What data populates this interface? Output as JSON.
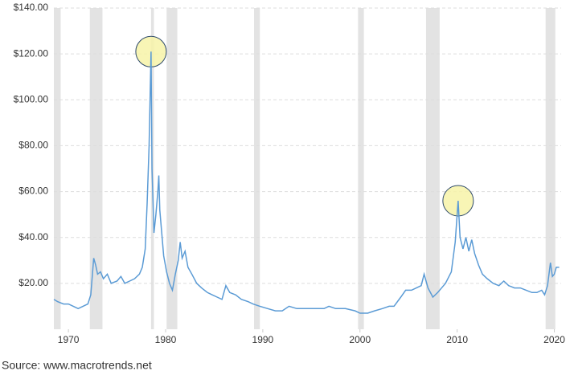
{
  "chart_data": {
    "type": "line",
    "source": "Source:  www.macrotrends.net",
    "xlim": [
      1968.5,
      2020.7
    ],
    "ylim": [
      0,
      140
    ],
    "xticks": [
      1970,
      1980,
      1990,
      2000,
      2010,
      2020
    ],
    "yticks": [
      {
        "value": 20,
        "label": "$20.00"
      },
      {
        "value": 40,
        "label": "$40.00"
      },
      {
        "value": 60,
        "label": "$60.00"
      },
      {
        "value": 80,
        "label": "$80.00"
      },
      {
        "value": 100,
        "label": "$100.00"
      },
      {
        "value": 120,
        "label": "$120.00"
      },
      {
        "value": 140,
        "label": "$140.00"
      }
    ],
    "grid": true,
    "recession_color": "#e3e3e3",
    "recessions": [
      [
        1968.5,
        1969.2
      ],
      [
        1972.2,
        1973.5
      ],
      [
        1978.5,
        1978.8
      ],
      [
        1980.1,
        1981.2
      ],
      [
        1989.1,
        1989.7
      ],
      [
        1999.8,
        2000.4
      ],
      [
        2006.8,
        2008.2
      ],
      [
        2019.1,
        2020.1
      ]
    ],
    "highlight_color": "#f7f3a8",
    "highlights": [
      {
        "x": 1978.5,
        "y": 121
      },
      {
        "x": 2010.1,
        "y": 56
      }
    ],
    "series": [
      {
        "color": "#5b9bd5",
        "x": [
          1968.5,
          1968.9,
          1969.5,
          1970,
          1970.5,
          1971,
          1971.5,
          1972,
          1972.3,
          1972.6,
          1972.8,
          1973.0,
          1973.3,
          1973.6,
          1974,
          1974.4,
          1975,
          1975.4,
          1975.8,
          1976.3,
          1976.8,
          1977.3,
          1977.6,
          1977.9,
          1978.1,
          1978.3,
          1978.5,
          1978.6,
          1978.8,
          1979.0,
          1979.2,
          1979.3,
          1979.4,
          1979.6,
          1979.8,
          1980.1,
          1980.4,
          1980.7,
          1981.0,
          1981.3,
          1981.5,
          1981.7,
          1982.0,
          1982.3,
          1982.7,
          1983.2,
          1983.7,
          1984.3,
          1984.8,
          1985.3,
          1985.8,
          1986.2,
          1986.6,
          1987.2,
          1987.8,
          1988.5,
          1989,
          1989.7,
          1990.5,
          1991.3,
          1992,
          1992.7,
          1993.5,
          1994.5,
          1995.5,
          1996.3,
          1996.8,
          1997.5,
          1998.5,
          1999.5,
          2000,
          2000.8,
          2001.5,
          2002.3,
          2003,
          2003.5,
          2004.2,
          2004.7,
          2005.3,
          2005.8,
          2006.3,
          2006.6,
          2007,
          2007.5,
          2008,
          2008.4,
          2008.8,
          2009.4,
          2009.8,
          2010.1,
          2010.3,
          2010.6,
          2010.9,
          2011.2,
          2011.5,
          2011.8,
          2012.2,
          2012.6,
          2013.1,
          2013.7,
          2014.3,
          2014.8,
          2015.3,
          2015.9,
          2016.5,
          2017.1,
          2017.7,
          2018.2,
          2018.7,
          2019.0,
          2019.3,
          2019.6,
          2019.8,
          2020.0,
          2020.2,
          2020.5
        ],
        "values": [
          13,
          12,
          11,
          11,
          10,
          9,
          10,
          11,
          15,
          31,
          28,
          24,
          25,
          22,
          24,
          20,
          21,
          23,
          20,
          21,
          22,
          24,
          27,
          35,
          55,
          80,
          121,
          70,
          42,
          50,
          60,
          67,
          52,
          42,
          32,
          25,
          20,
          17,
          24,
          30,
          38,
          31,
          34,
          27,
          24,
          20,
          18,
          16,
          15,
          14,
          13,
          19,
          16,
          15,
          13,
          12,
          11,
          10,
          9,
          8,
          8,
          10,
          9,
          9,
          9,
          9,
          10,
          9,
          9,
          8,
          7,
          7,
          8,
          9,
          10,
          10,
          14,
          17,
          17,
          18,
          19,
          24,
          18,
          14,
          16,
          18,
          20,
          25,
          38,
          56,
          40,
          35,
          40,
          34,
          39,
          33,
          28,
          24,
          22,
          20,
          19,
          21,
          19,
          18,
          18,
          17,
          16,
          16,
          17,
          15,
          19,
          29,
          23,
          24,
          27,
          27
        ]
      }
    ]
  }
}
